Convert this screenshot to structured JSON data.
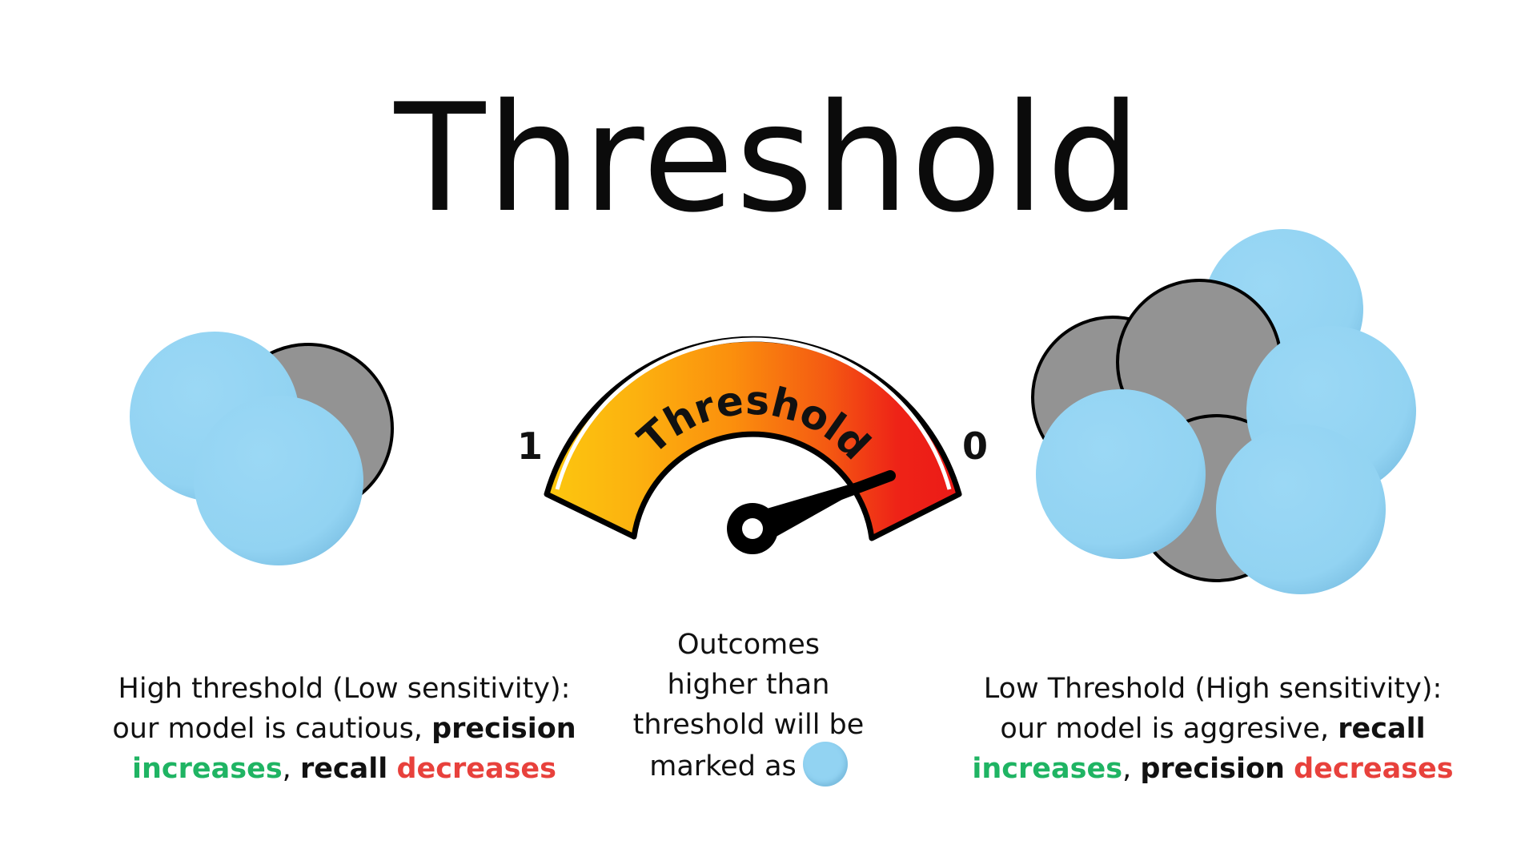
{
  "title": "Threshold",
  "gauge": {
    "label": "Threshold",
    "left_value": "1",
    "right_value": "0"
  },
  "left_caption": {
    "line1": "High threshold (Low sensitivity):",
    "line2_plain": "our model is cautious, ",
    "line2_bold": "precision",
    "line3_green": "increases",
    "line3_sep": ", ",
    "line3_bold": "recall",
    "line3_space": " ",
    "line3_red": "decreases"
  },
  "center_caption": {
    "line1": "Outcomes",
    "line2": "higher than",
    "line3": "threshold will be",
    "line4": "marked as"
  },
  "right_caption": {
    "line1": "Low Threshold (High sensitivity):",
    "line2_plain": "our model is aggresive, ",
    "line2_bold": "recall",
    "line3_green": "increases",
    "line3_sep": ", ",
    "line3_bold": "precision",
    "line3_space": " ",
    "line3_red": "decreases"
  },
  "colors": {
    "positive_circle": "#92d3f2",
    "negative_circle": "#939393",
    "increase": "#1fb463",
    "decrease": "#e8413c",
    "gauge_yellow": "#fcc10f",
    "gauge_orange": "#fb8a0d",
    "gauge_red": "#ee1c17"
  }
}
